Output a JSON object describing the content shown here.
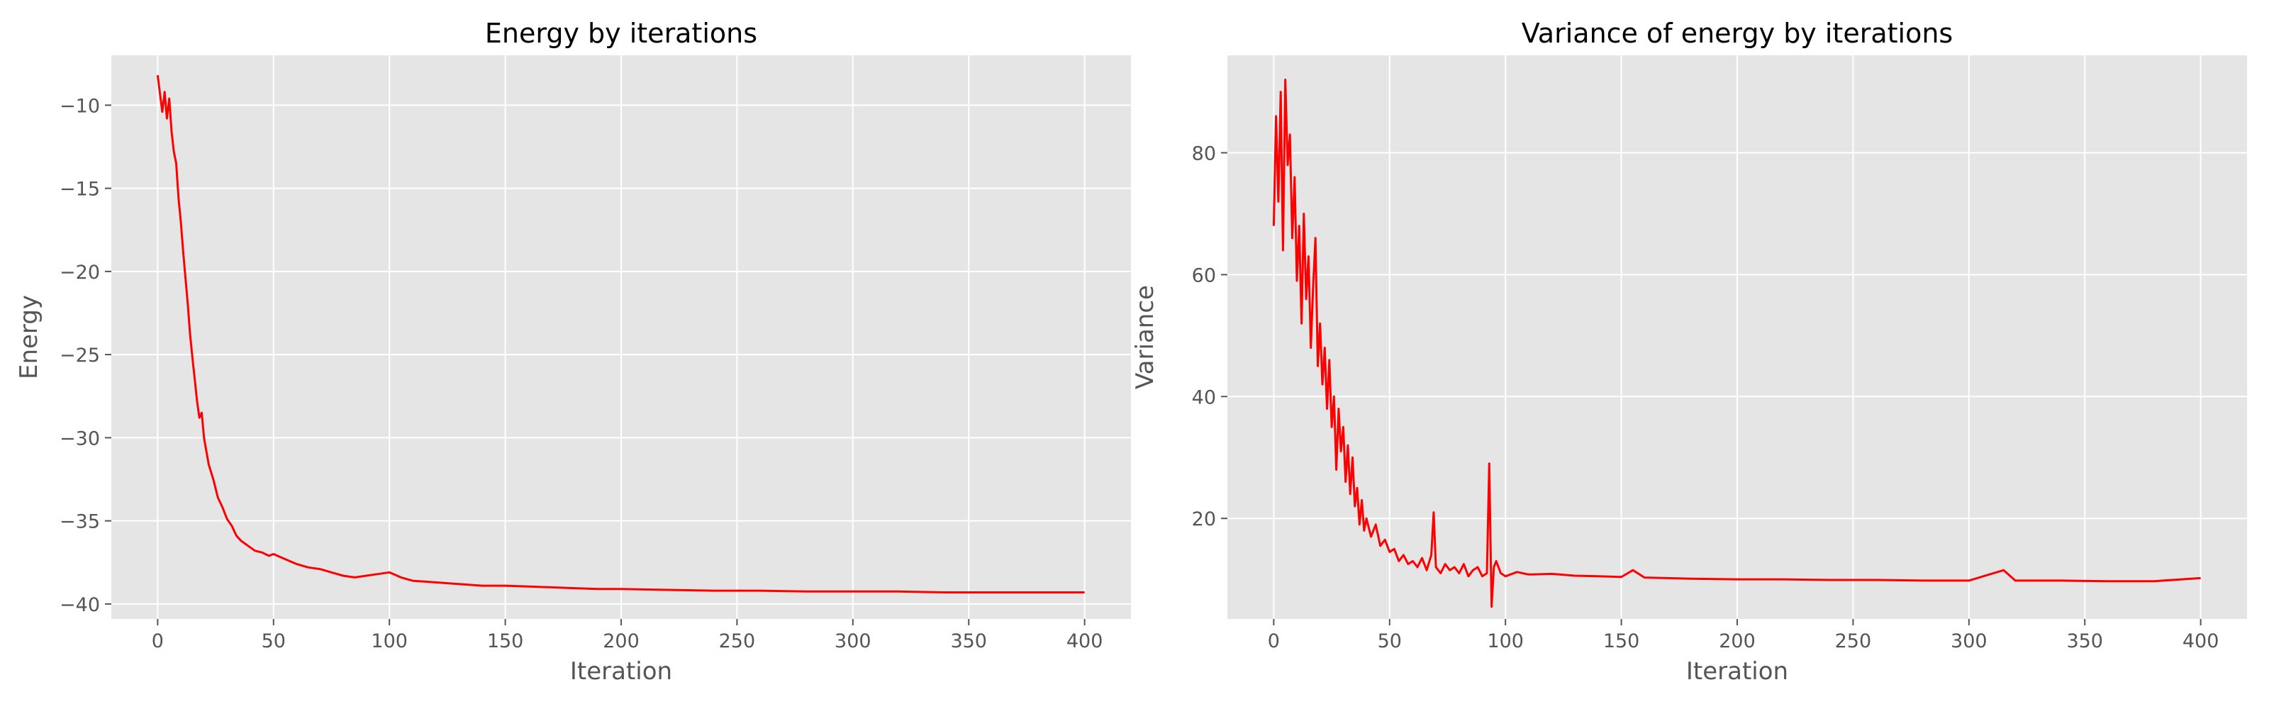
{
  "chart_data": [
    {
      "type": "line",
      "title": "Energy by iterations",
      "xlabel": "Iteration",
      "ylabel": "Energy",
      "xlim": [
        -20,
        420
      ],
      "ylim": [
        -40.9,
        -7.0
      ],
      "xticks": [
        0,
        50,
        100,
        150,
        200,
        250,
        300,
        350,
        400
      ],
      "yticks": [
        -40,
        -35,
        -30,
        -25,
        -20,
        -15,
        -10
      ],
      "grid": true,
      "color": "#ff0000",
      "series": [
        {
          "x": [
            0,
            1,
            2,
            3,
            4,
            5,
            6,
            7,
            8,
            9,
            10,
            11,
            12,
            13,
            14,
            15,
            16,
            17,
            18,
            19,
            20,
            22,
            24,
            26,
            28,
            30,
            32,
            34,
            36,
            38,
            40,
            42,
            45,
            48,
            50,
            55,
            60,
            65,
            70,
            75,
            80,
            85,
            90,
            95,
            100,
            105,
            110,
            120,
            130,
            140,
            150,
            160,
            170,
            180,
            190,
            200,
            220,
            240,
            260,
            280,
            300,
            320,
            340,
            360,
            380,
            400
          ],
          "values": [
            -8.2,
            -9.3,
            -10.4,
            -9.2,
            -10.8,
            -9.6,
            -11.6,
            -12.8,
            -13.5,
            -15.6,
            -17.0,
            -18.8,
            -20.4,
            -22.0,
            -23.8,
            -25.2,
            -26.5,
            -27.8,
            -28.8,
            -28.5,
            -30.0,
            -31.6,
            -32.5,
            -33.6,
            -34.2,
            -34.9,
            -35.3,
            -35.9,
            -36.2,
            -36.4,
            -36.6,
            -36.8,
            -36.9,
            -37.1,
            -37.0,
            -37.3,
            -37.6,
            -37.8,
            -37.9,
            -38.1,
            -38.3,
            -38.4,
            -38.3,
            -38.2,
            -38.1,
            -38.4,
            -38.6,
            -38.7,
            -38.8,
            -38.9,
            -38.9,
            -38.95,
            -39.0,
            -39.05,
            -39.1,
            -39.1,
            -39.15,
            -39.2,
            -39.2,
            -39.25,
            -39.25,
            -39.25,
            -39.3,
            -39.3,
            -39.3,
            -39.3
          ]
        }
      ]
    },
    {
      "type": "line",
      "title": "Variance of energy by iterations",
      "xlabel": "Iteration",
      "ylabel": "Variance",
      "xlim": [
        -20,
        420
      ],
      "ylim": [
        3.5,
        96
      ],
      "xticks": [
        0,
        50,
        100,
        150,
        200,
        250,
        300,
        350,
        400
      ],
      "yticks": [
        20,
        40,
        60,
        80
      ],
      "grid": true,
      "color": "#ff0000",
      "series": [
        {
          "x": [
            0,
            1,
            2,
            3,
            4,
            5,
            6,
            7,
            8,
            9,
            10,
            11,
            12,
            13,
            14,
            15,
            16,
            17,
            18,
            19,
            20,
            21,
            22,
            23,
            24,
            25,
            26,
            27,
            28,
            29,
            30,
            31,
            32,
            33,
            34,
            35,
            36,
            37,
            38,
            39,
            40,
            42,
            44,
            46,
            48,
            50,
            52,
            54,
            56,
            58,
            60,
            62,
            64,
            66,
            68,
            69,
            70,
            72,
            74,
            76,
            78,
            80,
            82,
            84,
            86,
            88,
            90,
            92,
            93,
            94,
            95,
            96,
            98,
            100,
            105,
            110,
            120,
            130,
            140,
            150,
            155,
            160,
            170,
            180,
            200,
            220,
            240,
            260,
            280,
            300,
            315,
            320,
            340,
            360,
            380,
            400
          ],
          "values": [
            68,
            86,
            72,
            90,
            64,
            92,
            78,
            83,
            66,
            76,
            59,
            68,
            52,
            70,
            56,
            63,
            48,
            58,
            66,
            45,
            52,
            42,
            48,
            38,
            46,
            35,
            40,
            28,
            38,
            31,
            35,
            26,
            32,
            24,
            30,
            22,
            25,
            19,
            23,
            18,
            20,
            17,
            19,
            15.5,
            16.5,
            14.5,
            15,
            13,
            14,
            12.5,
            13,
            12,
            13.5,
            11.5,
            14,
            21,
            12,
            11,
            12.5,
            11.5,
            12,
            11,
            12.5,
            10.5,
            11.5,
            12,
            10.5,
            11,
            29,
            5.5,
            12,
            13,
            11,
            10.5,
            11.2,
            10.8,
            10.9,
            10.6,
            10.5,
            10.4,
            11.5,
            10.3,
            10.2,
            10.1,
            10.0,
            10.0,
            9.9,
            9.9,
            9.8,
            9.8,
            11.5,
            9.8,
            9.8,
            9.7,
            9.7,
            10.2
          ]
        }
      ]
    }
  ]
}
